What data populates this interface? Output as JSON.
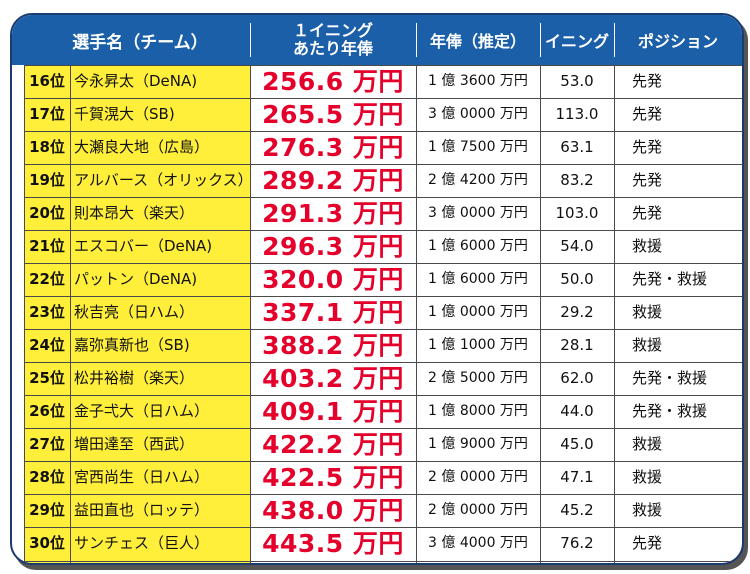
{
  "header": {
    "name": "選手名（チーム）",
    "per_line1": "１イニング",
    "per_line2": "あたり年俸",
    "salary": "年俸（推定）",
    "innings": "イニング",
    "position": "ポジション"
  },
  "rows": [
    {
      "rank": "16位",
      "name": "今永昇太（DeNA)",
      "per": "256.6 万円",
      "salary": "1 億 3600 万円",
      "innings": "53.0",
      "position": "先発"
    },
    {
      "rank": "17位",
      "name": "千賀滉大（SB)",
      "per": "265.5 万円",
      "salary": "3 億 0000 万円",
      "innings": "113.0",
      "position": "先発"
    },
    {
      "rank": "18位",
      "name": "大瀬良大地（広島）",
      "per": "276.3 万円",
      "salary": "1 億 7500 万円",
      "innings": "63.1",
      "position": "先発"
    },
    {
      "rank": "19位",
      "name": "アルバース（オリックス）",
      "per": "289.2 万円",
      "salary": "2 億 4200 万円",
      "innings": "83.2",
      "position": "先発"
    },
    {
      "rank": "20位",
      "name": "則本昂大（楽天）",
      "per": "291.3 万円",
      "salary": "3 億 0000 万円",
      "innings": "103.0",
      "position": "先発"
    },
    {
      "rank": "21位",
      "name": "エスコバー（DeNA)",
      "per": "296.3 万円",
      "salary": "1 億 6000 万円",
      "innings": "54.0",
      "position": "救援"
    },
    {
      "rank": "22位",
      "name": "パットン（DeNA)",
      "per": "320.0 万円",
      "salary": "1 億 6000 万円",
      "innings": "50.0",
      "position": "先発・救援"
    },
    {
      "rank": "23位",
      "name": "秋吉亮（日ハム）",
      "per": "337.1 万円",
      "salary": "1 億 0000 万円",
      "innings": "29.2",
      "position": "救援"
    },
    {
      "rank": "24位",
      "name": "嘉弥真新也（SB)",
      "per": "388.2 万円",
      "salary": "1 億 1000 万円",
      "innings": "28.1",
      "position": "救援"
    },
    {
      "rank": "25位",
      "name": "松井裕樹（楽天）",
      "per": "403.2 万円",
      "salary": "2 億 5000 万円",
      "innings": "62.0",
      "position": "先発・救援"
    },
    {
      "rank": "26位",
      "name": "金子弌大（日ハム）",
      "per": "409.1 万円",
      "salary": "1 億 8000 万円",
      "innings": "44.0",
      "position": "先発・救援"
    },
    {
      "rank": "27位",
      "name": "増田達至（西武）",
      "per": "422.2 万円",
      "salary": "1 億 9000 万円",
      "innings": "45.0",
      "position": "救援"
    },
    {
      "rank": "28位",
      "name": "宮西尚生（日ハム）",
      "per": "422.5 万円",
      "salary": "2 億 0000 万円",
      "innings": "47.1",
      "position": "救援"
    },
    {
      "rank": "29位",
      "name": "益田直也（ロッテ）",
      "per": "438.0 万円",
      "salary": "2 億 0000 万円",
      "innings": "45.2",
      "position": "救援"
    },
    {
      "rank": "30位",
      "name": "サンチェス（巨人）",
      "per": "443.5 万円",
      "salary": "3 億 4000 万円",
      "innings": "76.2",
      "position": "先発"
    }
  ]
}
